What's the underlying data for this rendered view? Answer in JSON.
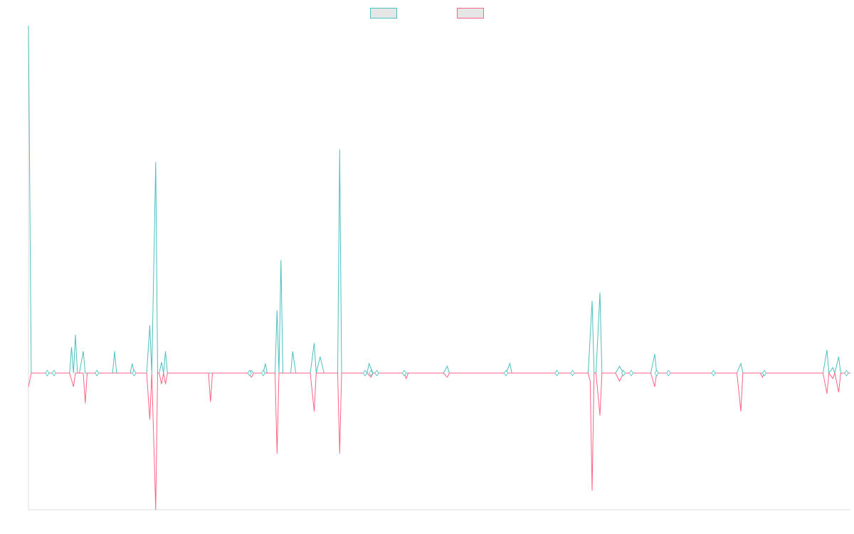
{
  "chart_data": {
    "type": "line",
    "title": "",
    "xlabel": "",
    "ylabel": "",
    "ylim": [
      -100,
      255
    ],
    "grid": false,
    "legend_position": "top-center",
    "colors": {
      "series_a": "#4bc0c0",
      "series_b": "#ff6384",
      "axis": "#dddddd",
      "swatch_fill": "#e6e6e6"
    },
    "series": [
      {
        "key": "a",
        "color": "#4bc0c0",
        "points": [
          [
            0,
            255
          ],
          [
            0.7,
            0
          ],
          [
            5,
            0
          ],
          [
            6.5,
            0
          ],
          [
            8,
            0
          ],
          [
            10.5,
            0
          ],
          [
            11,
            19
          ],
          [
            11.5,
            0
          ],
          [
            12,
            28
          ],
          [
            12.5,
            0
          ],
          [
            13,
            0
          ],
          [
            14,
            16
          ],
          [
            14.5,
            0
          ],
          [
            15,
            0
          ],
          [
            17,
            0
          ],
          [
            19,
            0
          ],
          [
            21.5,
            0
          ],
          [
            22,
            16
          ],
          [
            22.5,
            0
          ],
          [
            26,
            0
          ],
          [
            26.5,
            7
          ],
          [
            27,
            0
          ],
          [
            30.2,
            0
          ],
          [
            31,
            35
          ],
          [
            31.5,
            0
          ],
          [
            32.5,
            155
          ],
          [
            33,
            0
          ],
          [
            33.4,
            0
          ],
          [
            34,
            8
          ],
          [
            34.5,
            0
          ],
          [
            35,
            16
          ],
          [
            35.5,
            0
          ],
          [
            36,
            0
          ],
          [
            46,
            0
          ],
          [
            56,
            0
          ],
          [
            57,
            2
          ],
          [
            57.5,
            0
          ],
          [
            60,
            0
          ],
          [
            60.5,
            7
          ],
          [
            61,
            0
          ],
          [
            63,
            0
          ],
          [
            63.5,
            46
          ],
          [
            64,
            0
          ],
          [
            64.5,
            83
          ],
          [
            65,
            0
          ],
          [
            67,
            0
          ],
          [
            67.5,
            16
          ],
          [
            68.3,
            0
          ],
          [
            72,
            0
          ],
          [
            73,
            22
          ],
          [
            73.5,
            0
          ],
          [
            74.5,
            12
          ],
          [
            75.5,
            0
          ],
          [
            78,
            0
          ],
          [
            79,
            0
          ],
          [
            79.5,
            164
          ],
          [
            80,
            0
          ],
          [
            85,
            0
          ],
          [
            86,
            0
          ],
          [
            86.5,
            0
          ],
          [
            87,
            7
          ],
          [
            88,
            0
          ],
          [
            90,
            0
          ],
          [
            95,
            0
          ],
          [
            96,
            0
          ],
          [
            98,
            0
          ],
          [
            106,
            0
          ],
          [
            107,
            5
          ],
          [
            107.5,
            0
          ],
          [
            117,
            0
          ],
          [
            117.5,
            0
          ],
          [
            122,
            0
          ],
          [
            123,
            7
          ],
          [
            123.5,
            0
          ],
          [
            127,
            0
          ],
          [
            135,
            0
          ],
          [
            139,
            0
          ],
          [
            143,
            0
          ],
          [
            144,
            53
          ],
          [
            144.5,
            0
          ],
          [
            145,
            0
          ],
          [
            146,
            59
          ],
          [
            146.5,
            0
          ],
          [
            150,
            0
          ],
          [
            151,
            5
          ],
          [
            152,
            0
          ],
          [
            154,
            0
          ],
          [
            159,
            0
          ],
          [
            160,
            14
          ],
          [
            160.5,
            0
          ],
          [
            163,
            0
          ],
          [
            168,
            0
          ],
          [
            174,
            0
          ],
          [
            181,
            0
          ],
          [
            182,
            7
          ],
          [
            182.5,
            0
          ],
          [
            187,
            0
          ],
          [
            188,
            0
          ],
          [
            191,
            0
          ],
          [
            200,
            0
          ],
          [
            203,
            0
          ],
          [
            204,
            17
          ],
          [
            204.5,
            0
          ],
          [
            205.5,
            4
          ],
          [
            206,
            0
          ],
          [
            207,
            12
          ],
          [
            207.5,
            0
          ],
          [
            209,
            0
          ],
          [
            210,
            0
          ]
        ]
      },
      {
        "key": "b",
        "color": "#ff6384",
        "points": [
          [
            0,
            -10
          ],
          [
            0.7,
            0
          ],
          [
            5,
            0
          ],
          [
            6.5,
            0
          ],
          [
            8,
            0
          ],
          [
            10.5,
            0
          ],
          [
            11.5,
            -10
          ],
          [
            12,
            0
          ],
          [
            14,
            0
          ],
          [
            14.5,
            -22
          ],
          [
            15,
            0
          ],
          [
            17,
            0
          ],
          [
            19,
            0
          ],
          [
            21.5,
            0
          ],
          [
            22,
            0
          ],
          [
            26,
            0
          ],
          [
            27,
            0
          ],
          [
            30.2,
            0
          ],
          [
            31,
            -34
          ],
          [
            31.5,
            0
          ],
          [
            32.5,
            -100
          ],
          [
            33,
            0
          ],
          [
            33.4,
            0
          ],
          [
            34,
            -8
          ],
          [
            34.5,
            0
          ],
          [
            35,
            -8
          ],
          [
            35.5,
            0
          ],
          [
            36,
            0
          ],
          [
            46,
            0
          ],
          [
            46.5,
            -21
          ],
          [
            47,
            0
          ],
          [
            56,
            0
          ],
          [
            57,
            -3
          ],
          [
            57.5,
            0
          ],
          [
            60,
            0
          ],
          [
            61,
            0
          ],
          [
            63,
            0
          ],
          [
            63.5,
            -59
          ],
          [
            64,
            0
          ],
          [
            65,
            0
          ],
          [
            67,
            0
          ],
          [
            68.3,
            0
          ],
          [
            72,
            0
          ],
          [
            73,
            -28
          ],
          [
            73.5,
            0
          ],
          [
            75.5,
            0
          ],
          [
            78,
            0
          ],
          [
            79,
            0
          ],
          [
            79.5,
            -59
          ],
          [
            80,
            0
          ],
          [
            85,
            0
          ],
          [
            86,
            0
          ],
          [
            86.5,
            0
          ],
          [
            87.5,
            -3
          ],
          [
            88,
            0
          ],
          [
            90,
            0
          ],
          [
            95,
            0
          ],
          [
            96,
            0
          ],
          [
            96.5,
            -4
          ],
          [
            97,
            0
          ],
          [
            98,
            0
          ],
          [
            106,
            0
          ],
          [
            107,
            -3
          ],
          [
            107.5,
            0
          ],
          [
            117,
            0
          ],
          [
            122,
            0
          ],
          [
            123,
            0
          ],
          [
            127,
            0
          ],
          [
            135,
            0
          ],
          [
            139,
            0
          ],
          [
            143,
            0
          ],
          [
            143.5,
            -6
          ],
          [
            144,
            -86
          ],
          [
            144.5,
            0
          ],
          [
            145,
            0
          ],
          [
            146,
            -31
          ],
          [
            146.5,
            0
          ],
          [
            150,
            0
          ],
          [
            151,
            -6
          ],
          [
            152,
            0
          ],
          [
            154,
            0
          ],
          [
            159,
            0
          ],
          [
            160,
            -10
          ],
          [
            160.5,
            0
          ],
          [
            163,
            0
          ],
          [
            168,
            0
          ],
          [
            174,
            0
          ],
          [
            181,
            0
          ],
          [
            182,
            -28
          ],
          [
            182.5,
            0
          ],
          [
            187,
            0
          ],
          [
            187.5,
            -3
          ],
          [
            188,
            0
          ],
          [
            191,
            0
          ],
          [
            200,
            0
          ],
          [
            203,
            0
          ],
          [
            204,
            -15
          ],
          [
            204.5,
            0
          ],
          [
            205.5,
            -4
          ],
          [
            206,
            0
          ],
          [
            207,
            -14
          ],
          [
            207.5,
            0
          ],
          [
            209,
            0
          ],
          [
            210,
            0
          ]
        ]
      }
    ],
    "markers": [
      [
        4.8,
        0
      ],
      [
        6.5,
        0
      ],
      [
        17.5,
        0
      ],
      [
        27,
        0
      ],
      [
        56.5,
        0
      ],
      [
        60,
        0
      ],
      [
        86,
        0
      ],
      [
        87.5,
        0
      ],
      [
        89,
        0
      ],
      [
        96,
        0
      ],
      [
        122,
        0
      ],
      [
        135,
        0
      ],
      [
        139,
        0
      ],
      [
        152,
        0
      ],
      [
        154,
        0
      ],
      [
        160.5,
        0
      ],
      [
        163.5,
        0
      ],
      [
        175,
        0
      ],
      [
        188,
        0
      ],
      [
        209,
        0
      ]
    ]
  }
}
